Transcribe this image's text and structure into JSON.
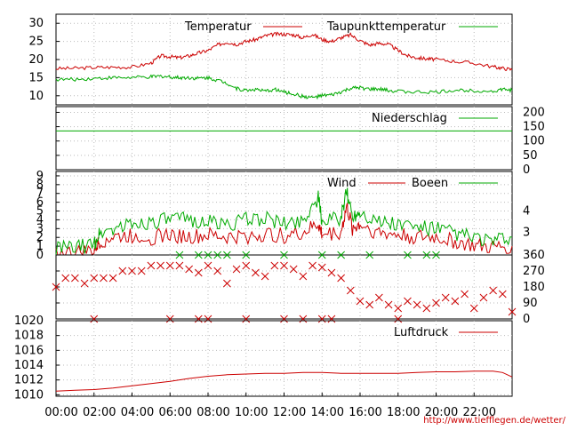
{
  "chart_data": [
    {
      "type": "line",
      "panel": "temperature",
      "yticks": [
        10,
        15,
        20,
        25,
        30
      ],
      "ylim": [
        7.5,
        32.5
      ],
      "grid": true,
      "legend_position": "top",
      "series": [
        {
          "name": "Temperatur",
          "color": "#cc0000",
          "points": [
            [
              0,
              17.5
            ],
            [
              1,
              17.6
            ],
            [
              2,
              17.8
            ],
            [
              3,
              17.9
            ],
            [
              4,
              17.9
            ],
            [
              5,
              19
            ],
            [
              5.5,
              21
            ],
            [
              6,
              20.8
            ],
            [
              6.5,
              20.5
            ],
            [
              7,
              21
            ],
            [
              7.5,
              21.8
            ],
            [
              8,
              22.5
            ],
            [
              8.5,
              24
            ],
            [
              9,
              24.8
            ],
            [
              9.5,
              24.2
            ],
            [
              10,
              25
            ],
            [
              10.5,
              25.5
            ],
            [
              11,
              26.5
            ],
            [
              11.5,
              27
            ],
            [
              12,
              27
            ],
            [
              12.5,
              26.8
            ],
            [
              13,
              26
            ],
            [
              13.5,
              27
            ],
            [
              14,
              25.5
            ],
            [
              14.5,
              25
            ],
            [
              15,
              26
            ],
            [
              15.5,
              26.8
            ],
            [
              16,
              25.2
            ],
            [
              16.5,
              24
            ],
            [
              17,
              24.5
            ],
            [
              17.5,
              24.2
            ],
            [
              18,
              22.5
            ],
            [
              18.5,
              21
            ],
            [
              19,
              20.5
            ],
            [
              19.5,
              20.2
            ],
            [
              20,
              20
            ],
            [
              21,
              19.5
            ],
            [
              22,
              19
            ],
            [
              23,
              18
            ],
            [
              23.5,
              17.6
            ],
            [
              24,
              17.2
            ]
          ]
        },
        {
          "name": "Taupunkttemperatur",
          "color": "#00aa00",
          "points": [
            [
              0,
              14.5
            ],
            [
              1,
              14.5
            ],
            [
              2,
              14.8
            ],
            [
              3,
              15
            ],
            [
              4,
              15
            ],
            [
              5,
              15.2
            ],
            [
              5.5,
              15.4
            ],
            [
              6,
              15.2
            ],
            [
              6.5,
              15
            ],
            [
              7,
              15
            ],
            [
              7.5,
              14.8
            ],
            [
              8,
              15
            ],
            [
              8.5,
              14.3
            ],
            [
              9,
              13.5
            ],
            [
              9.5,
              12
            ],
            [
              10,
              11.5
            ],
            [
              10.5,
              11.8
            ],
            [
              11,
              11.2
            ],
            [
              11.5,
              11.8
            ],
            [
              12,
              11
            ],
            [
              12.5,
              10.5
            ],
            [
              13,
              9.8
            ],
            [
              13.5,
              9.5
            ],
            [
              14,
              10
            ],
            [
              14.5,
              10.2
            ],
            [
              15,
              11
            ],
            [
              15.5,
              12
            ],
            [
              16,
              12.2
            ],
            [
              16.5,
              11.8
            ],
            [
              17,
              11.8
            ],
            [
              17.5,
              11.5
            ],
            [
              18,
              11.2
            ],
            [
              19,
              11
            ],
            [
              20,
              11
            ],
            [
              21,
              11.5
            ],
            [
              22,
              11.5
            ],
            [
              23,
              11.2
            ],
            [
              23.5,
              11.8
            ],
            [
              24,
              11.5
            ]
          ]
        }
      ]
    },
    {
      "type": "line",
      "panel": "precipitation",
      "yticks": [
        0,
        50,
        100,
        150,
        200
      ],
      "ylim": [
        0,
        220
      ],
      "grid": true,
      "legend_position": "top-right",
      "series": [
        {
          "name": "Niederschlag",
          "color": "#00aa00",
          "points": [
            [
              0,
              135
            ],
            [
              24,
              135
            ]
          ]
        }
      ]
    },
    {
      "type": "line",
      "panel": "wind",
      "yticks": [
        0,
        1,
        2,
        3,
        4,
        5,
        6,
        7,
        8,
        9
      ],
      "ylim": [
        0,
        9.5
      ],
      "bft_ticks": [
        3,
        4
      ],
      "grid": true,
      "legend_position": "top-right",
      "series": [
        {
          "name": "Wind",
          "color": "#cc0000",
          "points": [
            [
              0,
              0.2
            ],
            [
              1,
              0.2
            ],
            [
              2,
              0.5
            ],
            [
              2.3,
              1.5
            ],
            [
              3,
              2
            ],
            [
              4,
              2.2
            ],
            [
              5,
              2
            ],
            [
              6,
              2.3
            ],
            [
              7,
              2
            ],
            [
              8,
              2.2
            ],
            [
              9,
              2
            ],
            [
              10,
              2.1
            ],
            [
              11,
              2.3
            ],
            [
              12,
              2.2
            ],
            [
              13,
              2.5
            ],
            [
              13.8,
              3.5
            ],
            [
              14,
              2.3
            ],
            [
              15,
              2.6
            ],
            [
              15.3,
              5.5
            ],
            [
              15.6,
              3
            ],
            [
              16,
              3.5
            ],
            [
              17,
              2.5
            ],
            [
              18,
              2.3
            ],
            [
              19,
              2
            ],
            [
              20,
              2
            ],
            [
              21,
              1.5
            ],
            [
              22,
              1
            ],
            [
              23,
              0.8
            ],
            [
              24,
              1
            ]
          ]
        },
        {
          "name": "Boeen",
          "color": "#00aa00",
          "points": [
            [
              0,
              0.8
            ],
            [
              1,
              0.8
            ],
            [
              2,
              1.2
            ],
            [
              2.3,
              2.5
            ],
            [
              3,
              3
            ],
            [
              4,
              3.5
            ],
            [
              5,
              3.8
            ],
            [
              6,
              4
            ],
            [
              7,
              4
            ],
            [
              8,
              3.8
            ],
            [
              9,
              3.5
            ],
            [
              10,
              4
            ],
            [
              11,
              4.2
            ],
            [
              12,
              3.5
            ],
            [
              13,
              4
            ],
            [
              13.8,
              6.5
            ],
            [
              14,
              3.8
            ],
            [
              15,
              4.2
            ],
            [
              15.3,
              7.2
            ],
            [
              15.6,
              4.5
            ],
            [
              16,
              5
            ],
            [
              17,
              3.8
            ],
            [
              18,
              3.5
            ],
            [
              19,
              3.2
            ],
            [
              20,
              3
            ],
            [
              21,
              2.5
            ],
            [
              22,
              2
            ],
            [
              23,
              1.5
            ],
            [
              24,
              2
            ]
          ]
        }
      ]
    },
    {
      "type": "scatter",
      "panel": "wind_direction",
      "yticks": [
        0,
        90,
        180,
        270,
        360
      ],
      "ylim": [
        0,
        360
      ],
      "grid": true,
      "series": [
        {
          "name": "",
          "color": "#cc0000",
          "marker": "x",
          "points": [
            [
              0,
              180
            ],
            [
              0.5,
              230
            ],
            [
              1,
              230
            ],
            [
              1.5,
              200
            ],
            [
              2,
              230
            ],
            [
              2.5,
              230
            ],
            [
              3,
              230
            ],
            [
              3.5,
              270
            ],
            [
              4,
              270
            ],
            [
              4.5,
              270
            ],
            [
              5,
              300
            ],
            [
              5.5,
              300
            ],
            [
              6,
              300
            ],
            [
              6.5,
              300
            ],
            [
              7,
              280
            ],
            [
              7.5,
              260
            ],
            [
              8,
              300
            ],
            [
              8.5,
              270
            ],
            [
              9,
              200
            ],
            [
              9.5,
              280
            ],
            [
              10,
              300
            ],
            [
              10.5,
              260
            ],
            [
              11,
              240
            ],
            [
              11.5,
              300
            ],
            [
              12,
              300
            ],
            [
              12.5,
              280
            ],
            [
              13,
              240
            ],
            [
              13.5,
              300
            ],
            [
              14,
              290
            ],
            [
              14.5,
              260
            ],
            [
              15,
              230
            ],
            [
              15.5,
              160
            ],
            [
              16,
              100
            ],
            [
              16.5,
              80
            ],
            [
              17,
              120
            ],
            [
              17.5,
              80
            ],
            [
              18,
              60
            ],
            [
              18.5,
              100
            ],
            [
              19,
              80
            ],
            [
              19.5,
              60
            ],
            [
              20,
              90
            ],
            [
              20.5,
              120
            ],
            [
              21,
              100
            ],
            [
              21.5,
              140
            ],
            [
              22,
              60
            ],
            [
              22.5,
              120
            ],
            [
              23,
              160
            ],
            [
              23.5,
              140
            ],
            [
              24,
              40
            ],
            [
              2,
              0
            ],
            [
              6,
              0
            ],
            [
              7.5,
              0
            ],
            [
              8,
              0
            ],
            [
              10,
              0
            ],
            [
              12,
              0
            ],
            [
              13,
              0
            ],
            [
              14,
              0
            ],
            [
              14.5,
              0
            ],
            [
              18,
              0
            ]
          ]
        },
        {
          "name": "",
          "color": "#00aa00",
          "marker": "x",
          "points": [
            [
              6.5,
              360
            ],
            [
              7.5,
              360
            ],
            [
              8,
              360
            ],
            [
              8.5,
              360
            ],
            [
              9,
              360
            ],
            [
              10,
              360
            ],
            [
              12,
              360
            ],
            [
              14,
              360
            ],
            [
              15,
              360
            ],
            [
              16.5,
              360
            ],
            [
              18.5,
              360
            ],
            [
              19.5,
              360
            ],
            [
              20,
              360
            ]
          ]
        }
      ]
    },
    {
      "type": "line",
      "panel": "pressure",
      "yticks": [
        1010,
        1012,
        1014,
        1016,
        1018,
        1020
      ],
      "ylim": [
        1009.8,
        1020
      ],
      "grid": true,
      "legend_position": "top-right",
      "series": [
        {
          "name": "Luftdruck",
          "color": "#cc0000",
          "points": [
            [
              0,
              1010.5
            ],
            [
              1,
              1010.6
            ],
            [
              2,
              1010.7
            ],
            [
              3,
              1010.9
            ],
            [
              4,
              1011.2
            ],
            [
              5,
              1011.5
            ],
            [
              6,
              1011.8
            ],
            [
              7,
              1012.2
            ],
            [
              8,
              1012.5
            ],
            [
              9,
              1012.7
            ],
            [
              10,
              1012.8
            ],
            [
              11,
              1012.9
            ],
            [
              12,
              1012.9
            ],
            [
              13,
              1013.0
            ],
            [
              14,
              1013.0
            ],
            [
              15,
              1012.9
            ],
            [
              16,
              1012.9
            ],
            [
              17,
              1012.9
            ],
            [
              18,
              1012.9
            ],
            [
              19,
              1013.0
            ],
            [
              20,
              1013.1
            ],
            [
              21,
              1013.1
            ],
            [
              22,
              1013.2
            ],
            [
              23,
              1013.2
            ],
            [
              23.5,
              1013.0
            ],
            [
              24,
              1012.4
            ]
          ]
        }
      ]
    }
  ],
  "x_axis": {
    "range": [
      0,
      24
    ],
    "tick_labels": [
      "00:00",
      "02:00",
      "04:00",
      "06:00",
      "08:00",
      "10:00",
      "12:00",
      "14:00",
      "16:00",
      "18:00",
      "20:00",
      "22:00"
    ]
  },
  "credit": "http://www.tiefflegen.de/wetter/",
  "colors": {
    "red": "#cc0000",
    "green": "#00aa00",
    "grid": "#bbbbbb",
    "credit": "#cc0000"
  }
}
